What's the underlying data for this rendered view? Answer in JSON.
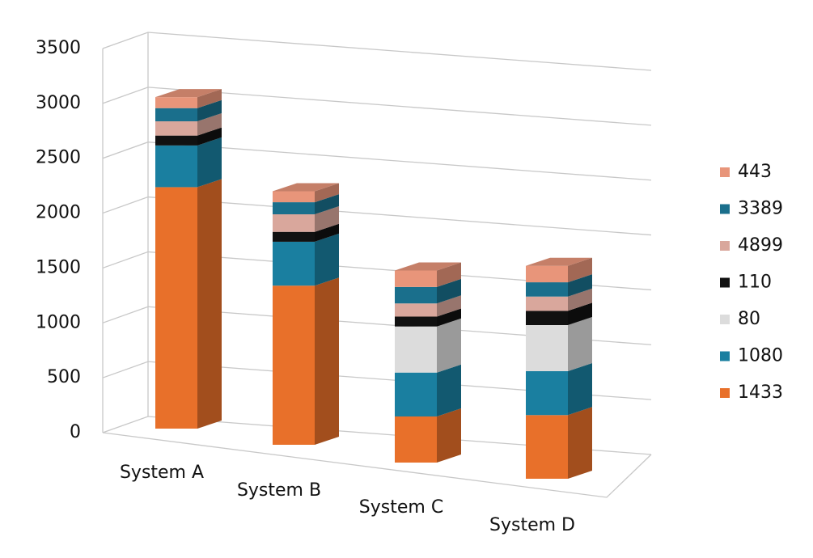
{
  "chart_data": {
    "type": "bar3d_stacked",
    "categories": [
      "System A",
      "System B",
      "System C",
      "System D"
    ],
    "series": [
      {
        "name": "1433",
        "color": "#e8702a",
        "values": [
          2200,
          1450,
          420,
          580
        ]
      },
      {
        "name": "1080",
        "color": "#1a7fa0",
        "values": [
          380,
          400,
          400,
          400
        ]
      },
      {
        "name": "80",
        "color": "#dcdcdc",
        "values": [
          0,
          0,
          420,
          420
        ]
      },
      {
        "name": "110",
        "color": "#111111",
        "values": [
          90,
          90,
          90,
          130
        ]
      },
      {
        "name": "4899",
        "color": "#d9a79c",
        "values": [
          130,
          160,
          120,
          130
        ]
      },
      {
        "name": "3389",
        "color": "#1a6f8c",
        "values": [
          120,
          110,
          150,
          130
        ]
      },
      {
        "name": "443",
        "color": "#e8957a",
        "values": [
          100,
          100,
          150,
          150
        ]
      }
    ],
    "ylim": [
      0,
      3500
    ],
    "yticks": [
      0,
      500,
      1000,
      1500,
      2000,
      2500,
      3000,
      3500
    ],
    "grid": true
  }
}
